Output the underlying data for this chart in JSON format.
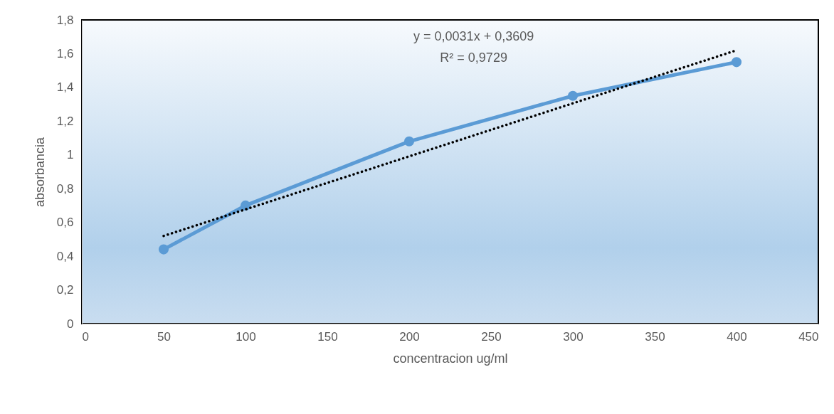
{
  "chart_data": {
    "type": "line",
    "xlabel": "concentracion ug/ml",
    "ylabel": "absorbancia",
    "x": [
      50,
      100,
      200,
      300,
      400
    ],
    "series": [
      {
        "color": "#5b9bd5",
        "marker": "circle",
        "line_style": "solid",
        "values": [
          0.44,
          0.7,
          1.08,
          1.35,
          1.55
        ]
      },
      {
        "color": "#000000",
        "marker": "none",
        "line_style": "dotted",
        "x": [
          50,
          400
        ],
        "values": [
          0.52,
          1.62
        ]
      }
    ],
    "annotations": [
      "y = 0,0031x + 0,3609",
      "R² = 0,9729"
    ],
    "xlim": [
      0,
      450
    ],
    "xticks": [
      0,
      50,
      100,
      150,
      200,
      250,
      300,
      350,
      400,
      450
    ],
    "ylim": [
      0,
      1.8
    ],
    "yticks": [
      0,
      {
        "value": 0.2,
        "label": "0,2"
      },
      {
        "value": 0.4,
        "label": "0,4"
      },
      {
        "value": 0.6,
        "label": "0,6"
      },
      {
        "value": 0.8,
        "label": "0,8"
      },
      1,
      {
        "value": 1.2,
        "label": "1,2"
      },
      {
        "value": 1.4,
        "label": "1,4"
      },
      {
        "value": 1.6,
        "label": "1,6"
      },
      {
        "value": 1.8,
        "label": "1,8"
      }
    ]
  }
}
